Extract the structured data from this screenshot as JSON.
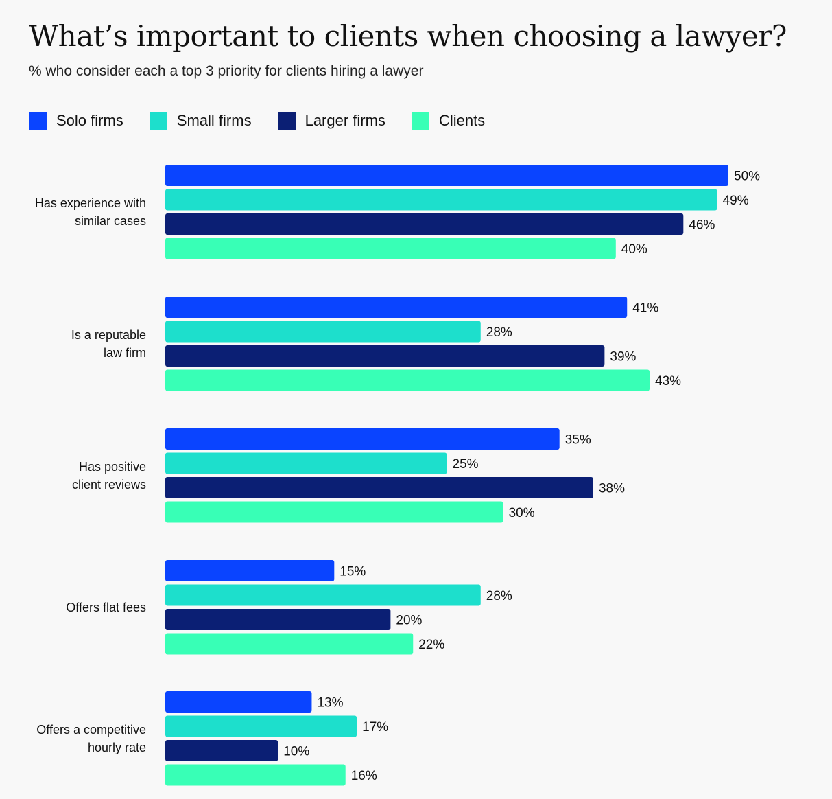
{
  "chart_data": {
    "type": "bar",
    "orientation": "horizontal",
    "title": "What’s important to clients when choosing a lawyer?",
    "subtitle": "% who consider each a top 3 priority for clients hiring a lawyer",
    "xlabel": "",
    "ylabel": "",
    "xlim": [
      0,
      50
    ],
    "grid": false,
    "legend_position": "top-left",
    "value_suffix": "%",
    "categories": [
      [
        "Has experience with",
        "similar cases"
      ],
      [
        "Is a reputable",
        "law firm"
      ],
      [
        "Has positive",
        "client reviews"
      ],
      [
        "Offers flat fees"
      ],
      [
        "Offers a competitive",
        "hourly rate"
      ]
    ],
    "series": [
      {
        "name": "Solo firms",
        "color": "#0a44ff",
        "values": [
          50,
          41,
          35,
          15,
          13
        ]
      },
      {
        "name": "Small firms",
        "color": "#1ddfcc",
        "values": [
          49,
          28,
          25,
          28,
          17
        ]
      },
      {
        "name": "Larger firms",
        "color": "#0b1f74",
        "values": [
          46,
          39,
          38,
          20,
          10
        ]
      },
      {
        "name": "Clients",
        "color": "#38ffb6",
        "values": [
          40,
          43,
          30,
          22,
          16
        ]
      }
    ]
  }
}
